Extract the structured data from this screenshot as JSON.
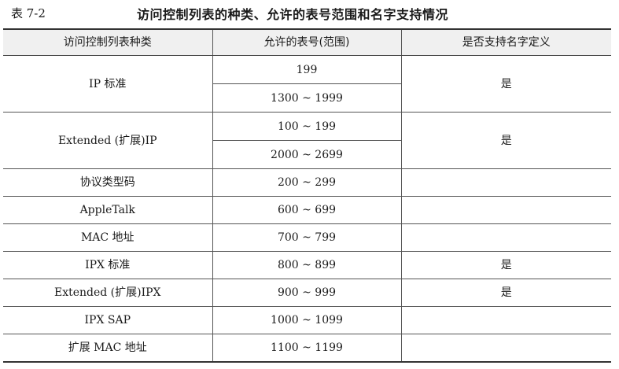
{
  "caption": {
    "number": "表 7-2",
    "title": "访问控制列表的种类、允许的表号范围和名字支持情况"
  },
  "table": {
    "headers": [
      "访问控制列表种类",
      "允许的表号(范围)",
      "是否支持名字定义"
    ],
    "rows": [
      {
        "type": "IP 标准",
        "ranges": [
          "199",
          "1300 ~ 1999"
        ],
        "named": "是"
      },
      {
        "type": "Extended (扩展)IP",
        "ranges": [
          "100 ~ 199",
          "2000 ~ 2699"
        ],
        "named": "是"
      },
      {
        "type": "协议类型码",
        "ranges": [
          "200 ~ 299"
        ],
        "named": ""
      },
      {
        "type": "AppleTalk",
        "ranges": [
          "600 ~ 699"
        ],
        "named": ""
      },
      {
        "type": "MAC 地址",
        "ranges": [
          "700 ~ 799"
        ],
        "named": ""
      },
      {
        "type": "IPX 标准",
        "ranges": [
          "800 ~ 899"
        ],
        "named": "是"
      },
      {
        "type": "Extended (扩展)IPX",
        "ranges": [
          "900 ~ 999"
        ],
        "named": "是"
      },
      {
        "type": "IPX SAP",
        "ranges": [
          "1000 ~ 1099"
        ],
        "named": ""
      },
      {
        "type": "扩展 MAC 地址",
        "ranges": [
          "1100 ~ 1199"
        ],
        "named": ""
      }
    ]
  }
}
